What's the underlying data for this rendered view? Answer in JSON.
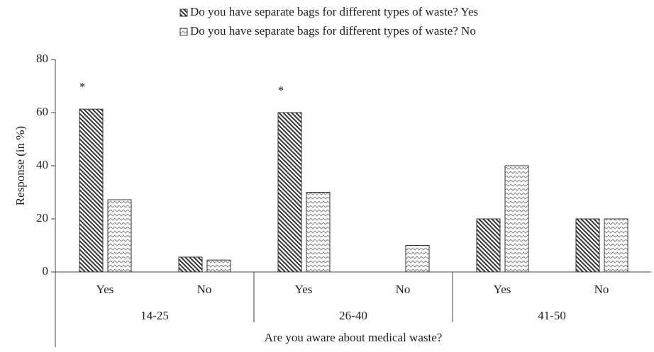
{
  "chart_data": {
    "type": "bar",
    "categories": [
      "Yes",
      "No",
      "Yes",
      "No",
      "Yes",
      "No"
    ],
    "groups": [
      "14-25",
      "26-40",
      "41-50"
    ],
    "series": [
      {
        "name": "Do you have separate bags for different types of waste? Yes",
        "color": "#333333",
        "values": [
          61.3,
          5.6,
          60,
          0,
          20,
          20
        ]
      },
      {
        "name": "Do you have separate bags for different types of waste? No",
        "color": "#8a8a8a",
        "values": [
          27.2,
          4.5,
          30,
          10,
          40,
          20
        ]
      }
    ],
    "annotations": [
      "*",
      null,
      "*",
      null,
      null,
      null
    ],
    "xlabel": "Are you aware about medical waste?",
    "ylabel": "Response (in %)",
    "ylim": [
      0,
      80
    ],
    "yticks": [
      0,
      20,
      40,
      60,
      80
    ],
    "grid": false,
    "legend": "top"
  }
}
